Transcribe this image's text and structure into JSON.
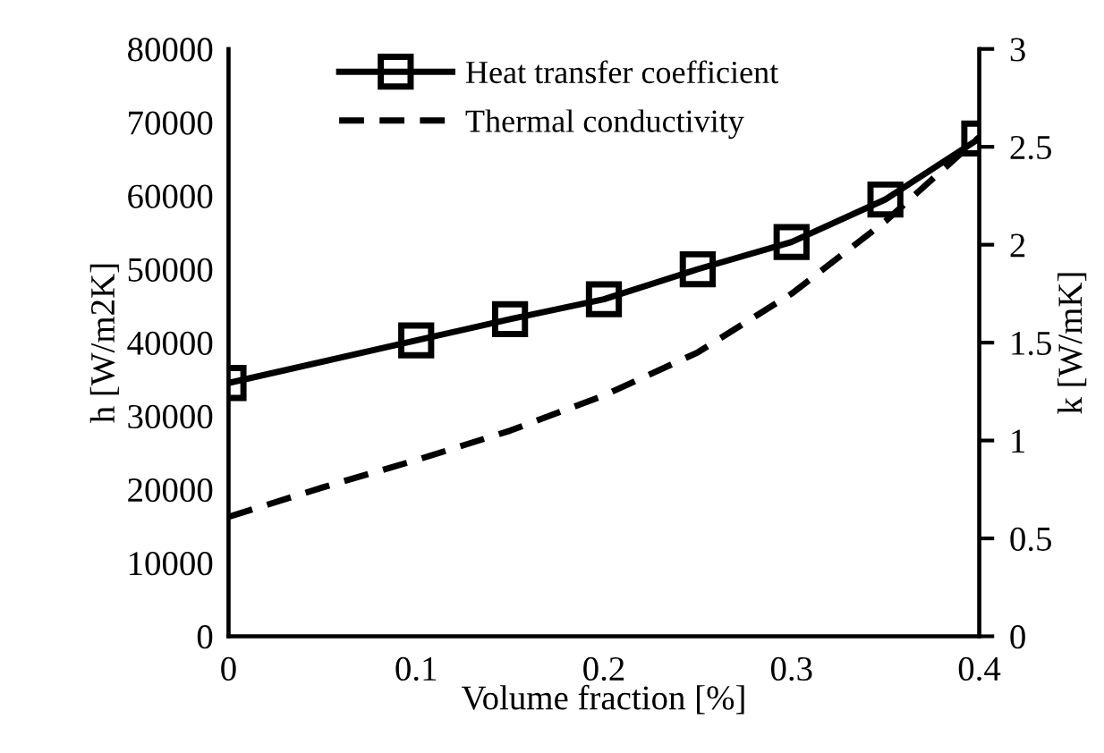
{
  "chart_data": {
    "type": "line",
    "xlabel": "Volume fraction [%]",
    "ylabel": "h [W/m2K]",
    "y2label": "k [W/mK]",
    "xlim": [
      0,
      0.4
    ],
    "xticks": [
      0,
      0.1,
      0.2,
      0.3,
      0.4
    ],
    "ylim": [
      0,
      80000
    ],
    "yticks": [
      0,
      10000,
      20000,
      30000,
      40000,
      50000,
      60000,
      70000,
      80000
    ],
    "y2lim": [
      0,
      3
    ],
    "y2ticks": [
      0,
      0.5,
      1,
      1.5,
      2,
      2.5,
      3
    ],
    "grid": false,
    "legend": "top",
    "tick_labels": [
      "x",
      "y",
      "y2"
    ],
    "series": [
      {
        "name": "Heat transfer coefficient",
        "color": "#000000",
        "marker": "square",
        "line_style": "solid",
        "x": [
          0,
          0.1,
          0.15,
          0.2,
          0.25,
          0.3,
          0.35,
          0.4
        ],
        "values": [
          34500,
          40300,
          43200,
          45900,
          50000,
          53700,
          59500,
          67800
        ]
      },
      {
        "name": "Thermal conductivity",
        "color": "#000000",
        "marker": "none",
        "line_style": "dashed",
        "axis": "y2",
        "x": [
          0,
          0.05,
          0.1,
          0.15,
          0.2,
          0.25,
          0.3,
          0.35,
          0.4
        ],
        "values": [
          0.61,
          0.76,
          0.9,
          1.05,
          1.23,
          1.45,
          1.75,
          2.12,
          2.55
        ]
      }
    ]
  }
}
